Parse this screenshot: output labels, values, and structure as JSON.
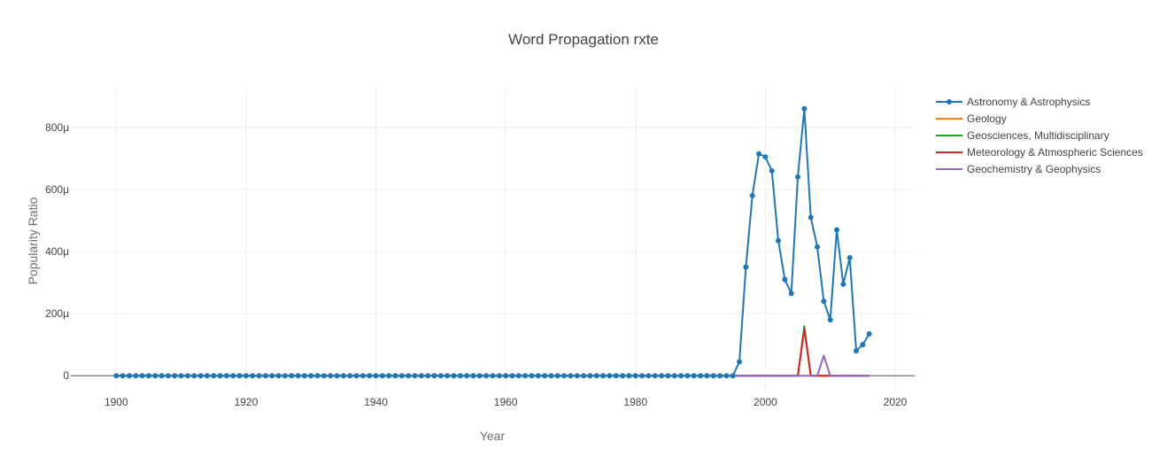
{
  "chart_data": {
    "type": "line",
    "title": "Word Propagation rxte",
    "xlabel": "Year",
    "ylabel": "Popularity Ratio",
    "xlim": [
      1893,
      2023
    ],
    "ylim": [
      -45,
      925
    ],
    "x_ticks": [
      1900,
      1920,
      1940,
      1960,
      1980,
      2000,
      2020
    ],
    "y_ticks": [
      0,
      200,
      400,
      600,
      800
    ],
    "y_tick_labels": [
      "0",
      "200μ",
      "400μ",
      "600μ",
      "800μ"
    ],
    "grid": true,
    "legend_position": "right",
    "series": [
      {
        "name": "Astronomy & Astrophysics",
        "color": "#1f77b4",
        "mode": "lines+markers",
        "x_start": 1900,
        "values": [
          0,
          0,
          0,
          0,
          0,
          0,
          0,
          0,
          0,
          0,
          0,
          0,
          0,
          0,
          0,
          0,
          0,
          0,
          0,
          0,
          0,
          0,
          0,
          0,
          0,
          0,
          0,
          0,
          0,
          0,
          0,
          0,
          0,
          0,
          0,
          0,
          0,
          0,
          0,
          0,
          0,
          0,
          0,
          0,
          0,
          0,
          0,
          0,
          0,
          0,
          0,
          0,
          0,
          0,
          0,
          0,
          0,
          0,
          0,
          0,
          0,
          0,
          0,
          0,
          0,
          0,
          0,
          0,
          0,
          0,
          0,
          0,
          0,
          0,
          0,
          0,
          0,
          0,
          0,
          0,
          0,
          0,
          0,
          0,
          0,
          0,
          0,
          0,
          0,
          0,
          0,
          0,
          0,
          0,
          0,
          0,
          45,
          350,
          580,
          715,
          705,
          660,
          435,
          310,
          265,
          640,
          860,
          510,
          415,
          240,
          180,
          470,
          295,
          380,
          80,
          100,
          135
        ]
      },
      {
        "name": "Geology",
        "color": "#ff7f0e",
        "mode": "lines",
        "x": [
          1995,
          2005,
          2006,
          2007,
          2016
        ],
        "y": [
          0,
          0,
          150,
          0,
          0
        ]
      },
      {
        "name": "Geosciences, Multidisciplinary",
        "color": "#2ca02c",
        "mode": "lines",
        "x": [
          1900,
          1916,
          1995,
          2005,
          2006,
          2007,
          2016
        ],
        "y": [
          0,
          0,
          0,
          0,
          160,
          0,
          0
        ]
      },
      {
        "name": "Meteorology & Atmospheric Sciences",
        "color": "#d62728",
        "mode": "lines",
        "x": [
          1995,
          2005,
          2006,
          2007,
          2016
        ],
        "y": [
          0,
          0,
          150,
          0,
          0
        ]
      },
      {
        "name": "Geochemistry & Geophysics",
        "color": "#9467bd",
        "mode": "lines",
        "x": [
          1995,
          2008,
          2009,
          2010,
          2016
        ],
        "y": [
          0,
          0,
          65,
          0,
          0
        ]
      }
    ]
  }
}
